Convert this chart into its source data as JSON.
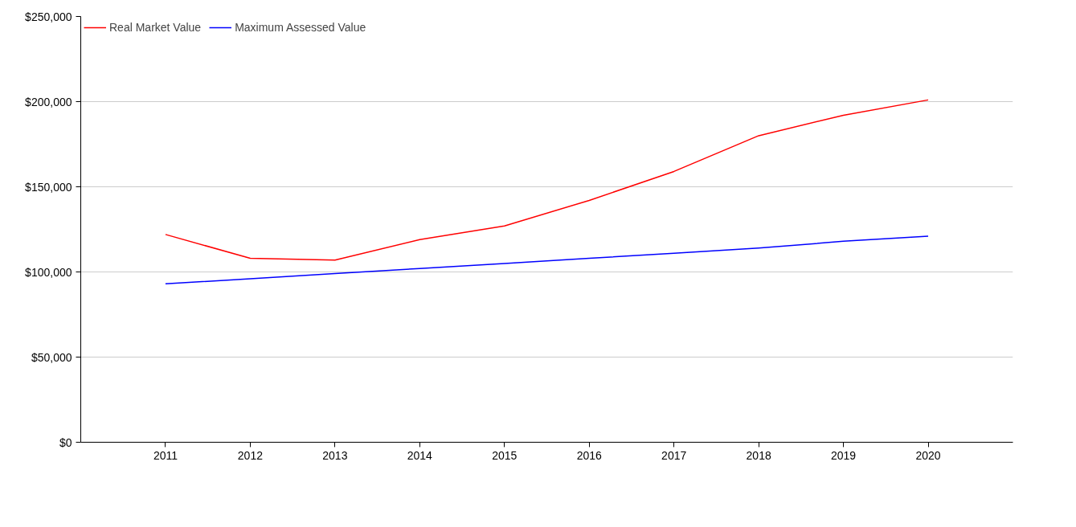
{
  "chart_data": {
    "type": "line",
    "x": [
      2011,
      2012,
      2013,
      2014,
      2015,
      2016,
      2017,
      2018,
      2019,
      2020
    ],
    "series": [
      {
        "name": "Real Market Value",
        "color": "#ff0000",
        "values": [
          122000,
          108000,
          107000,
          119000,
          127000,
          142000,
          159000,
          180000,
          192000,
          201000
        ]
      },
      {
        "name": "Maximum Assessed Value",
        "color": "#0000ff",
        "values": [
          93000,
          96000,
          99000,
          102000,
          105000,
          108000,
          111000,
          114000,
          118000,
          121000
        ]
      }
    ],
    "xlim": [
      2010,
      2021
    ],
    "xticks": [
      2011,
      2012,
      2013,
      2014,
      2015,
      2016,
      2017,
      2018,
      2019,
      2020
    ],
    "ylim": [
      0,
      250000
    ],
    "yticks": [
      {
        "value": 0,
        "label": "$0"
      },
      {
        "value": 50000,
        "label": "$50,000"
      },
      {
        "value": 100000,
        "label": "$100,000"
      },
      {
        "value": 150000,
        "label": "$150,000"
      },
      {
        "value": 200000,
        "label": "$200,000"
      },
      {
        "value": 250000,
        "label": "$250,000"
      }
    ],
    "grid": "y",
    "legend": "top left",
    "marker": "none",
    "line_style": "solid"
  }
}
